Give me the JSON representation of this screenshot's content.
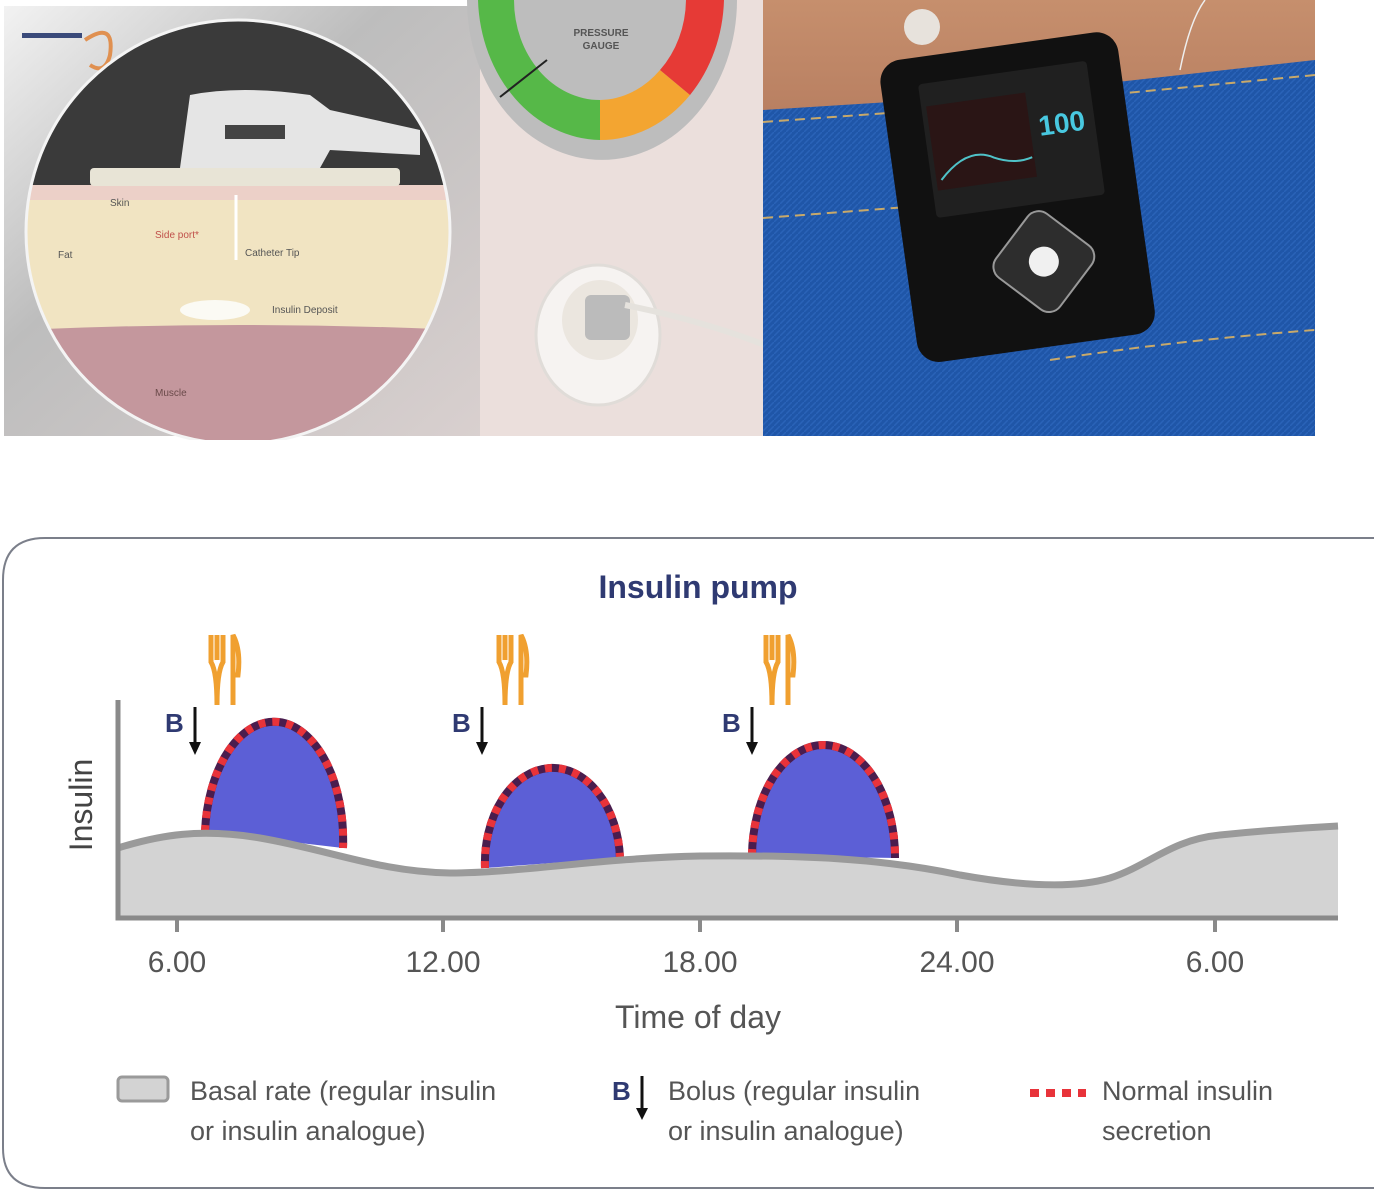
{
  "photos": {
    "illustration_labels": {
      "skin": "Skin",
      "fat": "Fat",
      "side_port": "Side port*",
      "catheter_tip": "Catheter Tip",
      "insulin_deposit": "Insulin Deposit",
      "muscle": "Muscle"
    },
    "gauge_label_line1": "PRESSURE",
    "gauge_label_line2": "GAUGE",
    "pump_screen_value": "100"
  },
  "diagram": {
    "title": "Insulin pump",
    "y_axis_label": "Insulin",
    "x_axis_label": "Time of day",
    "x_ticks": [
      "6.00",
      "12.00",
      "18.00",
      "24.00",
      "6.00"
    ],
    "bolus_marker": "B",
    "colors": {
      "title": "#2f3a72",
      "bolus_fill": "#5c5fd6",
      "secretion_dots": "#e8333a",
      "basal_fill": "#d3d3d3",
      "basal_line": "#9a9a9a",
      "meal_icon": "#f0a030"
    },
    "legend": [
      {
        "line1": "Basal rate (regular insulin",
        "line2": "or insulin analogue)"
      },
      {
        "line1": "Bolus (regular insulin",
        "line2": "or insulin analogue)"
      },
      {
        "line1": "Normal insulin",
        "line2": "secretion"
      }
    ]
  }
}
